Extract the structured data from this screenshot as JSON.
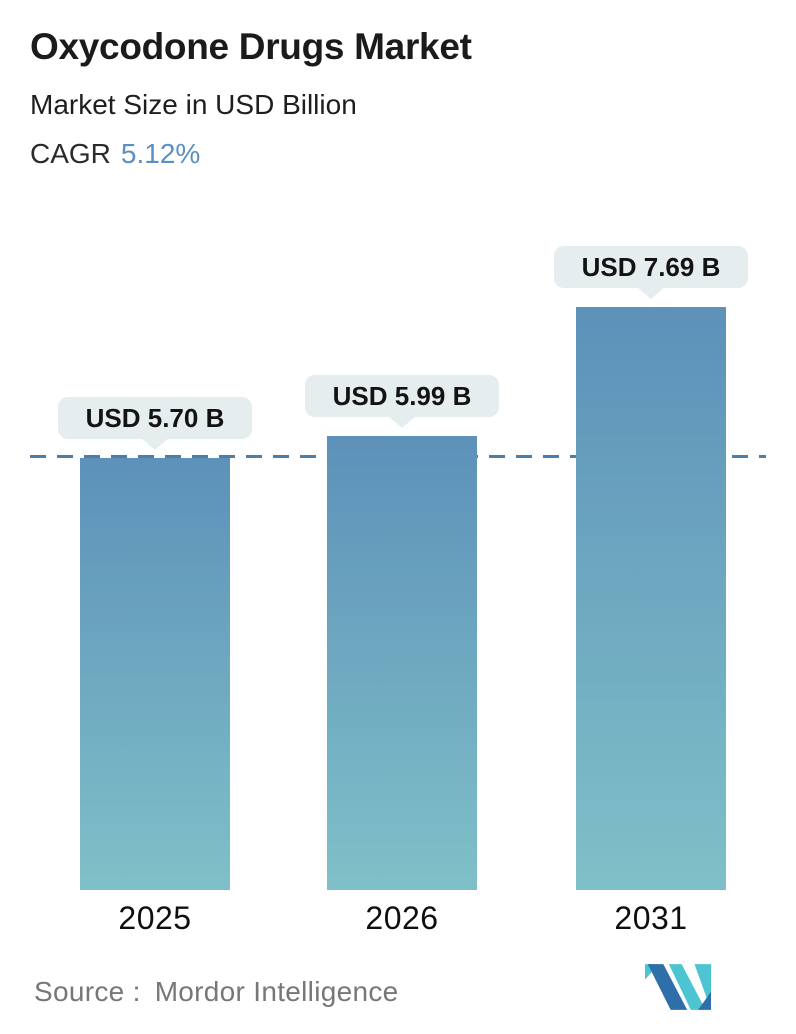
{
  "header": {
    "title": "Oxycodone Drugs Market",
    "subtitle": "Market Size in USD Billion",
    "cagr_label": "CAGR",
    "cagr_value": "5.12%",
    "cagr_value_color": "#5b8fc2"
  },
  "chart_data": {
    "type": "bar",
    "title": "Oxycodone Drugs Market",
    "subtitle": "Market Size in USD Billion",
    "cagr": "5.12%",
    "categories": [
      "2025",
      "2026",
      "2031"
    ],
    "values": [
      5.7,
      5.99,
      7.69
    ],
    "value_labels": [
      "USD 5.70 B",
      "USD 5.99 B",
      "USD 7.69 B"
    ],
    "unit": "USD Billion",
    "ylim": [
      0,
      7.69
    ],
    "grid": false,
    "legend": "none",
    "reference_line": {
      "style": "dashed",
      "at_value": 5.7,
      "color": "#4c7ea9"
    },
    "colors": {
      "bar_gradient_top": "#5d91b9",
      "bar_gradient_bottom": "#7fc0c8",
      "callout_bg": "#e6edee",
      "callout_text": "#131313",
      "axis_label": "#0f0f0f"
    }
  },
  "footer": {
    "source_label": "Source :",
    "source_value": "Mordor Intelligence",
    "logo": {
      "name": "mordor-intelligence-logo",
      "blue": "#2e6fa9",
      "teal": "#4cc4d2"
    }
  }
}
